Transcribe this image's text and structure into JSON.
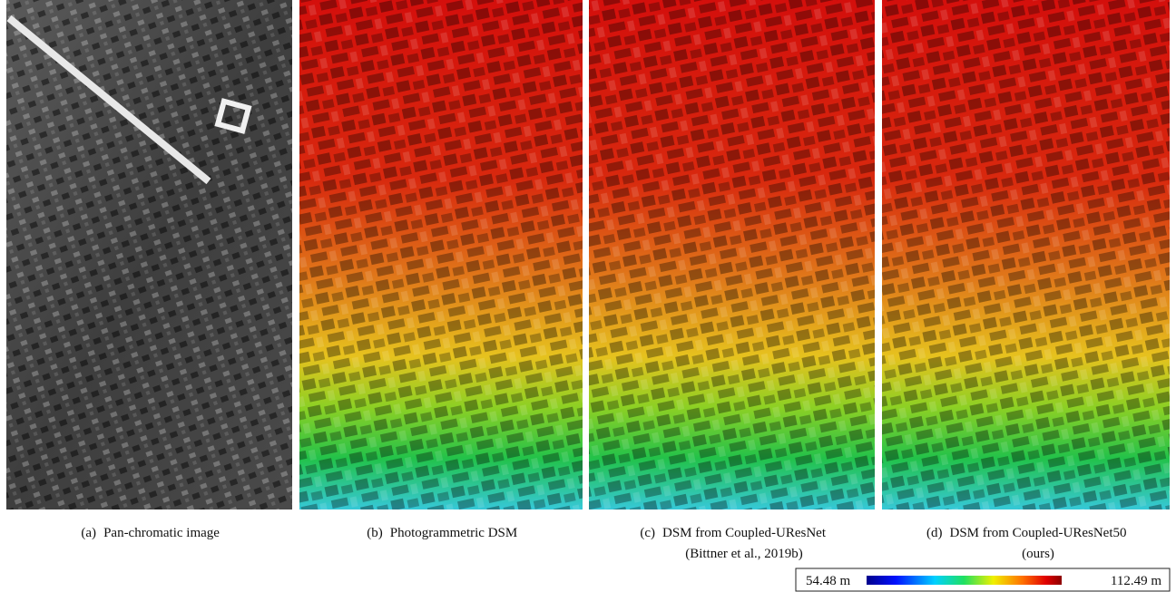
{
  "panels": [
    {
      "label": "(a)",
      "caption": [
        "Pan-chromatic image"
      ]
    },
    {
      "label": "(b)",
      "caption": [
        "Photogrammetric DSM"
      ]
    },
    {
      "label": "(c)",
      "caption": [
        "DSM from Coupled-UResNet",
        "(Bittner et al., 2019b)"
      ]
    },
    {
      "label": "(d)",
      "caption": [
        "DSM from Coupled-UResNet50",
        "(ours)"
      ]
    }
  ],
  "colorbar": {
    "min": "54.48 m",
    "max": "112.49 m"
  }
}
